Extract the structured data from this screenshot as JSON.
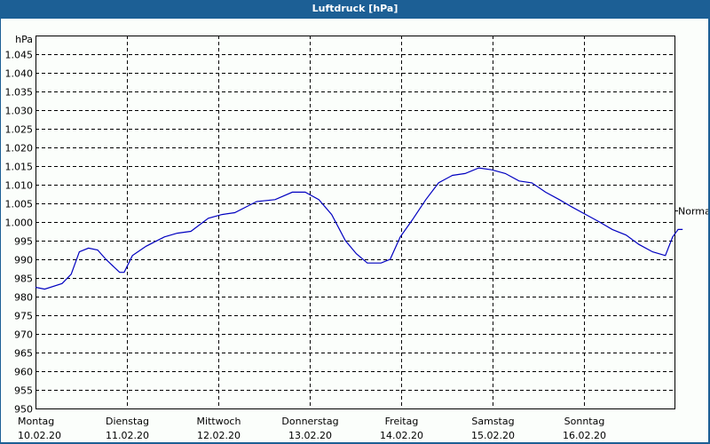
{
  "window": {
    "title": "Luftdruck [hPa]"
  },
  "colors": {
    "titlebar": "#1c5f95",
    "line": "#0000c0",
    "background": "#fbfefb",
    "grid": "#000000"
  },
  "chart_data": {
    "type": "line",
    "title": "Luftdruck [hPa]",
    "ylabel": "hPa",
    "xlabel": "",
    "ylim": [
      950,
      1050
    ],
    "yticks": [
      "950",
      "955",
      "960",
      "965",
      "970",
      "975",
      "980",
      "985",
      "990",
      "995",
      "1.000",
      "1.005",
      "1.010",
      "1.015",
      "1.020",
      "1.025",
      "1.030",
      "1.035",
      "1.040",
      "1.045"
    ],
    "ytick_values": [
      950,
      955,
      960,
      965,
      970,
      975,
      980,
      985,
      990,
      995,
      1000,
      1005,
      1010,
      1015,
      1020,
      1025,
      1030,
      1035,
      1040,
      1045
    ],
    "x_categories": [
      {
        "day": "Montag",
        "date": "10.02.20"
      },
      {
        "day": "Dienstag",
        "date": "11.02.20"
      },
      {
        "day": "Mittwoch",
        "date": "12.02.20"
      },
      {
        "day": "Donnerstag",
        "date": "13.02.20"
      },
      {
        "day": "Freitag",
        "date": "14.02.20"
      },
      {
        "day": "Samstag",
        "date": "15.02.20"
      },
      {
        "day": "Sonntag",
        "date": "16.02.20"
      }
    ],
    "reference_line": {
      "label": "Normal",
      "value": 1003
    },
    "grid": true,
    "series": [
      {
        "name": "Luftdruck",
        "x_days": [
          0.0,
          0.1,
          0.29,
          0.39,
          0.48,
          0.58,
          0.68,
          0.77,
          0.92,
          0.97,
          1.06,
          1.21,
          1.41,
          1.55,
          1.7,
          1.89,
          2.04,
          2.18,
          2.42,
          2.62,
          2.81,
          2.95,
          3.1,
          3.24,
          3.39,
          3.51,
          3.63,
          3.78,
          3.88,
          3.99,
          4.12,
          4.27,
          4.41,
          4.56,
          4.7,
          4.85,
          4.99,
          5.14,
          5.29,
          5.43,
          5.58,
          5.73,
          5.87,
          6.02,
          6.17,
          6.31,
          6.46,
          6.6,
          6.75,
          6.89,
          6.97,
          7.03,
          7.08
        ],
        "values": [
          982.5,
          982,
          983.5,
          986,
          992,
          993,
          992.5,
          990,
          986.5,
          986.5,
          991,
          993.5,
          996,
          997,
          997.5,
          1001,
          1002,
          1002.5,
          1005.5,
          1006,
          1008,
          1008,
          1006,
          1002,
          995,
          991.5,
          989,
          989,
          990,
          996,
          1000.5,
          1006,
          1010.5,
          1012.5,
          1013,
          1014.5,
          1014,
          1013,
          1011,
          1010.5,
          1008,
          1006,
          1004,
          1002,
          1000,
          998,
          996.5,
          994,
          992,
          991,
          996,
          998,
          998
        ]
      }
    ]
  }
}
